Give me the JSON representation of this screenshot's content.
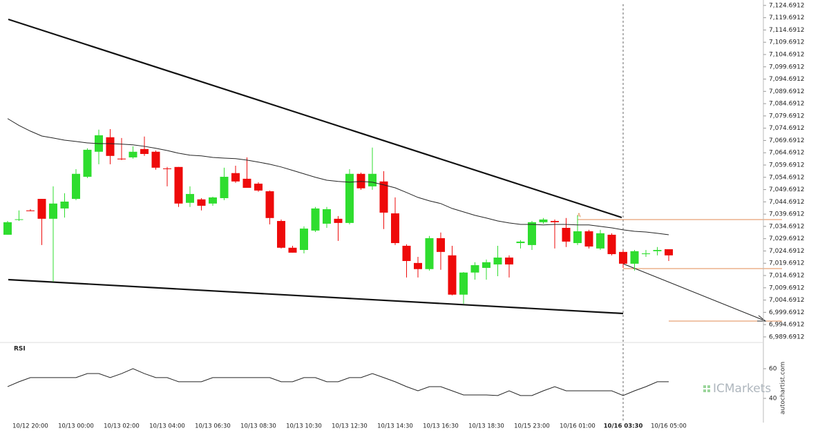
{
  "chart_data": [
    {
      "type": "candlestick",
      "categories": [
        null,
        null,
        "10/12 20:00",
        null,
        null,
        null,
        "10/13 00:00",
        null,
        null,
        null,
        "10/13 02:00",
        null,
        null,
        null,
        "10/13 04:00",
        null,
        null,
        null,
        "10/13 06:30",
        null,
        null,
        null,
        "10/13 08:30",
        null,
        null,
        null,
        "10/13 10:30",
        null,
        null,
        null,
        "10/13 12:30",
        null,
        null,
        null,
        "10/13 14:30",
        null,
        null,
        null,
        "10/13 16:30",
        null,
        null,
        null,
        "10/13 18:30",
        null,
        null,
        null,
        "10/15 23:00",
        null,
        null,
        null,
        "10/16 01:00",
        null,
        null,
        null,
        "10/16 03:30",
        null,
        null,
        null,
        "10/16 05:00"
      ],
      "open": [
        7031.3,
        7037.5,
        7041.2,
        7045.9,
        7037.8,
        7042.0,
        7045.9,
        7054.9,
        7065.1,
        7071.0,
        7062.3,
        7062.8,
        7066.2,
        7065.1,
        7058.3,
        7058.9,
        7044.3,
        7045.7,
        7044.0,
        7046.2,
        7056.4,
        7054.1,
        7052.1,
        7049.0,
        7036.9,
        7026.0,
        7025.1,
        7033.0,
        7035.8,
        7037.8,
        7036.1,
        7056.1,
        7051.0,
        7053.0,
        7040.0,
        7026.8,
        7019.8,
        7017.3,
        7029.9,
        7022.9,
        7006.9,
        7015.9,
        7017.8,
        7019.2,
        7022.0,
        7027.9,
        7027.1,
        7036.4,
        7036.9,
        7034.1,
        7027.9,
        7032.7,
        7025.7,
        7031.3,
        7024.3,
        7019.5,
        7023.4,
        7024.6,
        7025.4
      ],
      "high": [
        7036.9,
        7041.2,
        7041.7,
        7045.9,
        7051.0,
        7048.2,
        7058.0,
        7066.5,
        7074.1,
        7074.3,
        7070.7,
        7067.3,
        7071.3,
        7065.6,
        7058.9,
        7058.9,
        7051.0,
        7046.2,
        7046.8,
        7058.6,
        7059.4,
        7062.8,
        7052.7,
        7049.3,
        7037.5,
        7026.8,
        7034.7,
        7042.6,
        7042.6,
        7038.9,
        7058.0,
        7056.6,
        7066.8,
        7057.2,
        7046.5,
        7027.4,
        7022.3,
        7030.8,
        7032.2,
        7026.8,
        7016.1,
        7020.1,
        7021.2,
        7026.8,
        7022.9,
        7029.1,
        7036.9,
        7038.1,
        7037.5,
        7038.1,
        7039.2,
        7033.3,
        7033.3,
        7031.9,
        7025.1,
        7025.1,
        7025.1,
        7026.3,
        7025.4
      ],
      "low": [
        7031.3,
        7036.9,
        7040.9,
        7027.1,
        7012.2,
        7038.3,
        7045.4,
        7054.4,
        7060.0,
        7060.0,
        7061.7,
        7062.3,
        7063.4,
        7057.8,
        7051.0,
        7042.6,
        7042.6,
        7041.2,
        7043.1,
        7045.4,
        7052.4,
        7050.4,
        7048.8,
        7035.5,
        7025.7,
        7024.0,
        7023.7,
        7032.4,
        7034.1,
        7028.8,
        7035.5,
        7049.6,
        7049.6,
        7033.6,
        7027.1,
        7013.9,
        7013.9,
        7016.7,
        7017.0,
        7006.6,
        7003.2,
        7013.0,
        7013.0,
        7014.4,
        7013.9,
        7025.7,
        7025.1,
        7035.8,
        7025.7,
        7026.3,
        7027.1,
        7025.7,
        7025.1,
        7022.9,
        7017.8,
        7016.7,
        7022.3,
        7022.9,
        7020.6
      ],
      "close": [
        7036.4,
        7037.6,
        7040.9,
        7037.8,
        7044.0,
        7044.8,
        7056.1,
        7065.9,
        7071.8,
        7063.4,
        7062.0,
        7065.1,
        7064.2,
        7058.6,
        7058.2,
        7044.0,
        7047.9,
        7043.1,
        7046.5,
        7054.9,
        7053.0,
        7050.4,
        7049.3,
        7038.1,
        7026.0,
        7024.0,
        7033.8,
        7042.0,
        7041.7,
        7036.1,
        7056.1,
        7050.2,
        7056.1,
        7040.3,
        7027.9,
        7020.6,
        7017.3,
        7029.9,
        7024.3,
        7006.9,
        7015.9,
        7018.9,
        7020.1,
        7022.0,
        7019.2,
        7028.5,
        7036.4,
        7037.5,
        7036.4,
        7028.5,
        7032.7,
        7026.5,
        7031.9,
        7023.4,
        7019.5,
        7024.6,
        7023.7,
        7025.1,
        7022.9
      ],
      "moving_average": [
        7078.6,
        7075.8,
        7073.5,
        7071.5,
        7070.7,
        7069.8,
        7069.3,
        7068.7,
        7068.4,
        7068.4,
        7068.2,
        7067.9,
        7067.3,
        7066.5,
        7065.6,
        7064.5,
        7063.7,
        7063.4,
        7062.8,
        7062.5,
        7062.3,
        7061.7,
        7060.9,
        7060.0,
        7058.9,
        7057.5,
        7056.1,
        7054.7,
        7053.5,
        7053.0,
        7052.7,
        7053.0,
        7052.7,
        7051.6,
        7050.4,
        7048.5,
        7046.5,
        7045.1,
        7044.0,
        7042.0,
        7040.6,
        7039.2,
        7038.1,
        7036.9,
        7036.1,
        7035.5,
        7035.5,
        7035.3,
        7035.5,
        7035.5,
        7035.3,
        7035.3,
        7034.7,
        7034.1,
        7033.3,
        7032.7,
        7032.4,
        7031.9,
        7031.3
      ],
      "up_color": "#2fdd2f",
      "down_color": "#ee0a0a",
      "ma_color": "#222222",
      "annotation": "A",
      "ylim": [
        6987.7,
        7126.9
      ],
      "yticks": [
        {
          "value": 7124.6912,
          "label": "7,124.6912"
        },
        {
          "value": 7119.6912,
          "label": "7,119.6912"
        },
        {
          "value": 7114.6912,
          "label": "7,114.6912"
        },
        {
          "value": 7109.6912,
          "label": "7,109.6912"
        },
        {
          "value": 7104.6912,
          "label": "7,104.6912"
        },
        {
          "value": 7099.6912,
          "label": "7,099.6912"
        },
        {
          "value": 7094.6912,
          "label": "7,094.6912"
        },
        {
          "value": 7089.6912,
          "label": "7,089.6912"
        },
        {
          "value": 7084.6912,
          "label": "7,084.6912"
        },
        {
          "value": 7079.6912,
          "label": "7,079.6912"
        },
        {
          "value": 7074.6912,
          "label": "7,074.6912"
        },
        {
          "value": 7069.6912,
          "label": "7,069.6912"
        },
        {
          "value": 7064.6912,
          "label": "7,064.6912"
        },
        {
          "value": 7059.6912,
          "label": "7,059.6912"
        },
        {
          "value": 7054.6912,
          "label": "7,054.6912"
        },
        {
          "value": 7049.6912,
          "label": "7,049.6912"
        },
        {
          "value": 7044.6912,
          "label": "7,044.6912"
        },
        {
          "value": 7039.6912,
          "label": "7,039.6912"
        },
        {
          "value": 7034.6912,
          "label": "7,034.6912"
        },
        {
          "value": 7029.6912,
          "label": "7,029.6912"
        },
        {
          "value": 7024.6912,
          "label": "7,024.6912"
        },
        {
          "value": 7019.6912,
          "label": "7,019.6912"
        },
        {
          "value": 7014.6912,
          "label": "7,014.6912"
        },
        {
          "value": 7009.6912,
          "label": "7,009.6912"
        },
        {
          "value": 7004.6912,
          "label": "7,004.6912"
        },
        {
          "value": 6999.6912,
          "label": "6,999.6912"
        },
        {
          "value": 6994.6912,
          "label": "6,994.6912"
        },
        {
          "value": 6989.6912,
          "label": "6,989.6912"
        }
      ]
    },
    {
      "type": "line",
      "label": "RSI",
      "color": "#222222",
      "values": [
        47.9,
        51.2,
        54.0,
        54.0,
        54.0,
        54.0,
        54.0,
        56.7,
        56.7,
        54.0,
        56.7,
        60.0,
        56.7,
        54.0,
        54.0,
        51.2,
        51.2,
        51.2,
        54.0,
        54.0,
        54.0,
        54.0,
        54.0,
        54.0,
        51.2,
        51.2,
        54.0,
        54.0,
        51.2,
        51.2,
        54.0,
        54.0,
        56.7,
        54.0,
        51.2,
        47.9,
        45.1,
        47.9,
        47.9,
        45.1,
        42.3,
        42.3,
        42.3,
        41.9,
        45.1,
        41.9,
        41.9,
        45.1,
        47.9,
        45.1,
        45.1,
        45.1,
        45.1,
        45.1,
        41.9,
        45.1,
        47.9,
        51.2,
        51.2
      ],
      "ylim": [
        23.7,
        75.8
      ],
      "yticks": [
        40,
        60
      ]
    }
  ],
  "watermark": "ICMarkets",
  "source": "autochartist.com"
}
